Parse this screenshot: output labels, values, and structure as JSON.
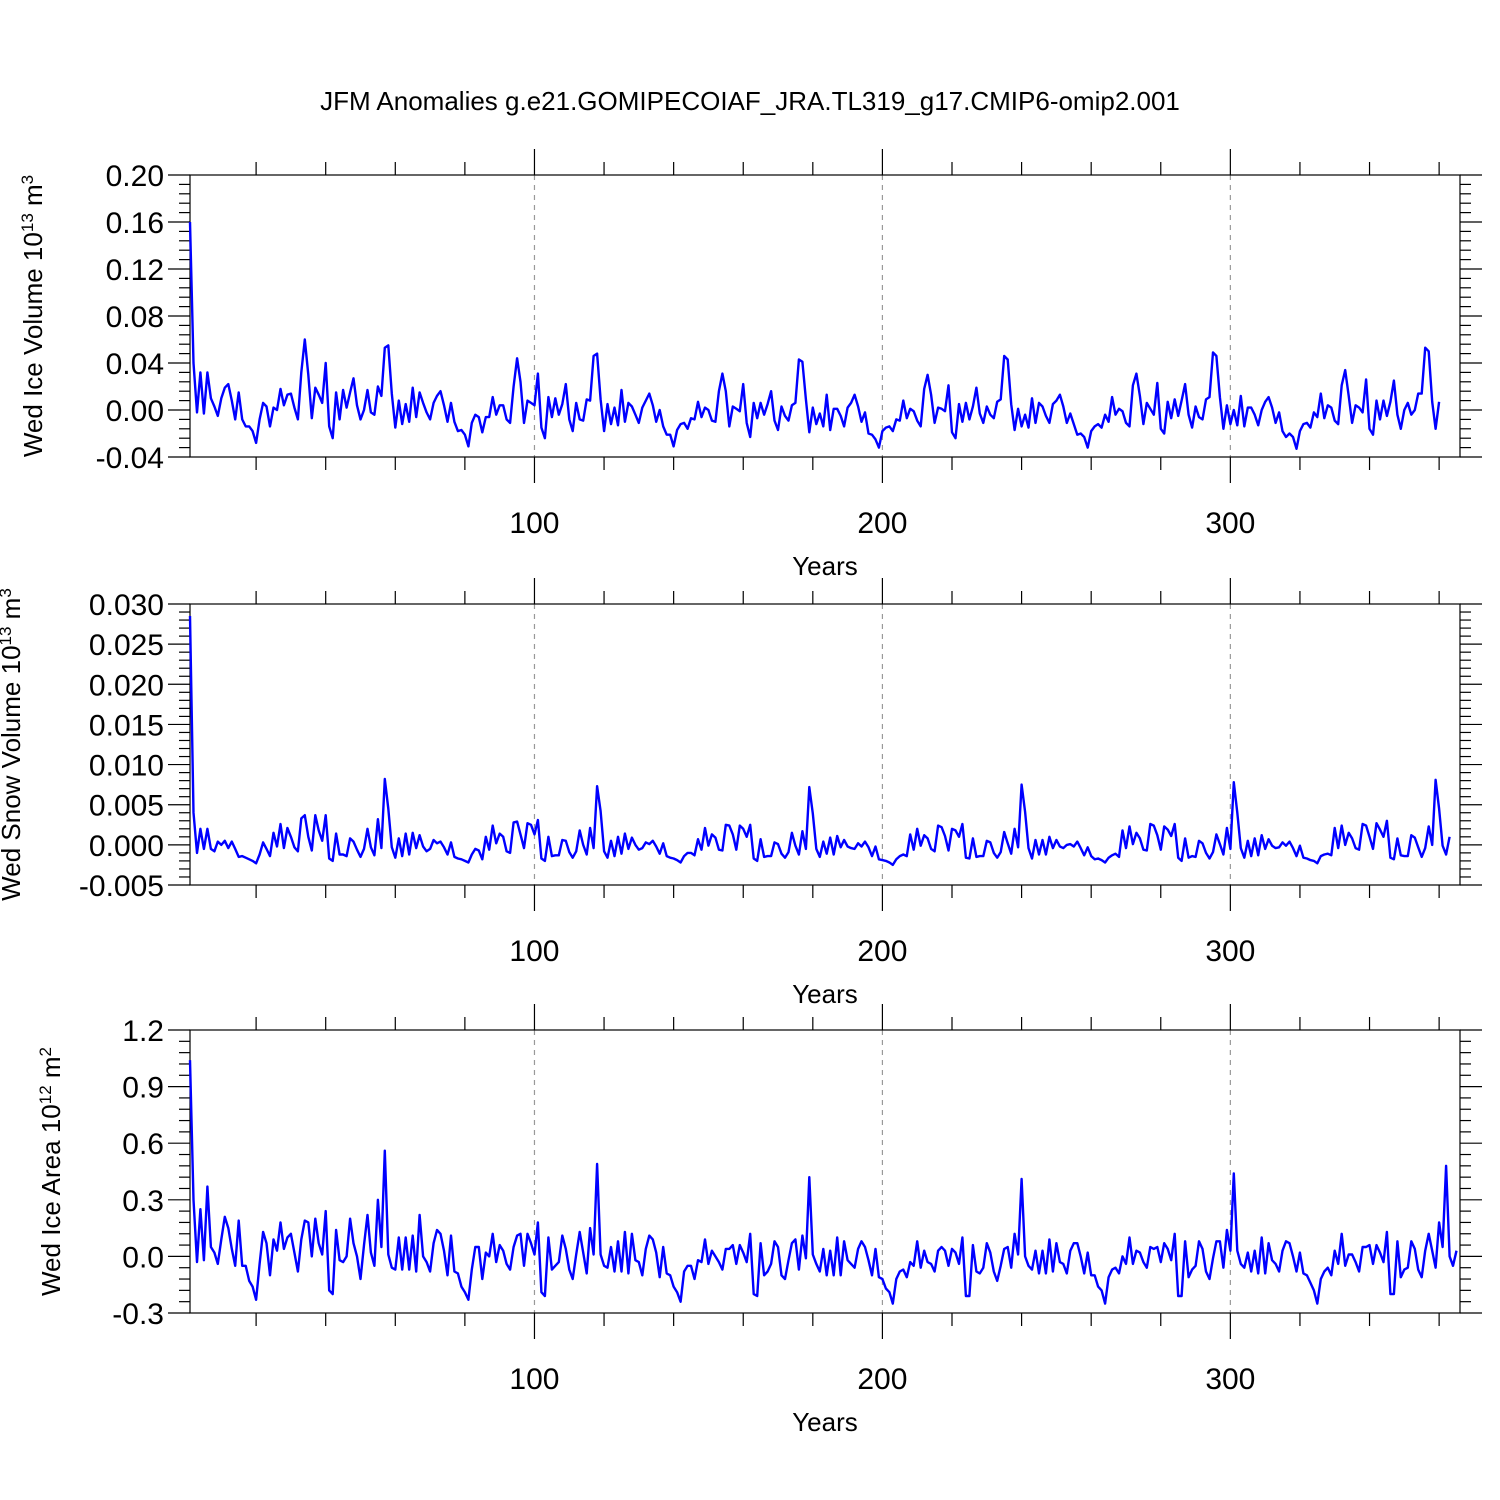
{
  "title": "JFM Anomalies g.e21.GOMIPECOIAF_JRA.TL319_g17.CMIP6-omip2.001",
  "chart_data": [
    {
      "type": "line",
      "ylabel": "Wed Ice Volume",
      "yunit_base": "10",
      "yunit_exp": "13",
      "yunit_tail": "m",
      "yunit_tail_exp": "3",
      "xlabel": "Years",
      "xlim": [
        1,
        366
      ],
      "ylim": [
        -0.04,
        0.2
      ],
      "yticks": [
        "0.20",
        "0.16",
        "0.12",
        "0.08",
        "0.04",
        "0.00",
        "-0.04"
      ],
      "xticks": [
        "100",
        "200",
        "300"
      ],
      "grid": "dashed vertical at 100, 200, 300",
      "color": "#0000ff",
      "x_start": 1,
      "values": [
        0.16,
        0.04,
        -0.002,
        0.032,
        -0.003,
        0.032,
        0.01,
        0.003,
        -0.005,
        0.01,
        0.019,
        0.022,
        0.008,
        -0.008,
        0.015,
        -0.008,
        -0.014,
        -0.014,
        -0.018,
        -0.028,
        -0.008,
        0.006,
        0.003,
        -0.014,
        0.002,
        0.0,
        0.018,
        0.004,
        0.013,
        0.014,
        0.002,
        -0.008,
        0.032,
        0.06,
        0.03,
        -0.007,
        0.019,
        0.013,
        0.006,
        0.04,
        -0.014,
        -0.024,
        0.015,
        -0.008,
        0.017,
        0.002,
        0.015,
        0.027,
        0.004,
        -0.008,
        0.0,
        0.017,
        -0.002,
        -0.004,
        0.02,
        0.012,
        0.053,
        0.055,
        0.014,
        -0.015,
        0.008,
        -0.012,
        0.005,
        -0.01,
        0.019,
        -0.006,
        0.015,
        0.006,
        -0.002,
        -0.008,
        0.006,
        0.012,
        0.016,
        0.004,
        -0.01,
        0.006,
        -0.01,
        -0.018,
        -0.017,
        -0.021,
        -0.031,
        -0.011,
        -0.004,
        -0.006,
        -0.019,
        -0.006,
        -0.006,
        0.011,
        -0.004,
        0.004,
        0.004,
        -0.008,
        -0.011,
        0.02,
        0.044,
        0.024,
        -0.011,
        0.008,
        0.006,
        0.004,
        0.031,
        -0.015,
        -0.024,
        0.011,
        -0.006,
        0.01,
        -0.004,
        0.005,
        0.022,
        -0.008,
        -0.018,
        0.006,
        -0.008,
        -0.009,
        0.009,
        0.008,
        0.046,
        0.048,
        0.009,
        -0.018,
        0.005,
        -0.012,
        0.002,
        -0.013,
        0.017,
        -0.01,
        0.006,
        0.003,
        -0.004,
        -0.011,
        0.002,
        0.008,
        0.014,
        0.004,
        -0.01,
        0.0,
        -0.014,
        -0.021,
        -0.021,
        -0.031,
        -0.017,
        -0.012,
        -0.011,
        -0.016,
        -0.007,
        -0.008,
        0.007,
        -0.006,
        0.002,
        0.0,
        -0.009,
        -0.01,
        0.016,
        0.031,
        0.016,
        -0.014,
        0.003,
        0.001,
        -0.001,
        0.022,
        -0.011,
        -0.023,
        0.006,
        -0.007,
        0.006,
        -0.004,
        0.005,
        0.016,
        -0.009,
        -0.017,
        0.003,
        -0.005,
        -0.009,
        0.004,
        0.006,
        0.043,
        0.041,
        0.009,
        -0.019,
        0.002,
        -0.012,
        -0.003,
        -0.014,
        0.013,
        -0.017,
        0.001,
        0.001,
        -0.005,
        -0.014,
        0.002,
        0.006,
        0.013,
        0.003,
        -0.01,
        -0.002,
        -0.02,
        -0.021,
        -0.025,
        -0.032,
        -0.018,
        -0.015,
        -0.014,
        -0.018,
        -0.008,
        -0.009,
        0.008,
        -0.007,
        0.001,
        -0.001,
        -0.009,
        -0.014,
        0.018,
        0.03,
        0.013,
        -0.011,
        0.002,
        0.001,
        -0.001,
        0.021,
        -0.019,
        -0.024,
        0.005,
        -0.01,
        0.006,
        -0.008,
        0.003,
        0.019,
        -0.003,
        -0.011,
        0.003,
        -0.004,
        -0.007,
        0.007,
        0.009,
        0.046,
        0.043,
        0.005,
        -0.017,
        0.001,
        -0.014,
        -0.004,
        -0.015,
        0.01,
        -0.011,
        0.006,
        0.003,
        -0.005,
        -0.011,
        0.005,
        0.008,
        0.013,
        0.003,
        -0.011,
        -0.003,
        -0.012,
        -0.021,
        -0.02,
        -0.023,
        -0.032,
        -0.018,
        -0.014,
        -0.012,
        -0.015,
        -0.004,
        -0.01,
        0.011,
        -0.004,
        0.001,
        -0.001,
        -0.011,
        -0.014,
        0.021,
        0.031,
        0.012,
        -0.012,
        0.006,
        0.001,
        -0.004,
        0.023,
        -0.016,
        -0.02,
        0.007,
        -0.007,
        0.009,
        -0.005,
        0.008,
        0.022,
        -0.004,
        -0.015,
        0.003,
        -0.006,
        -0.008,
        0.009,
        0.011,
        0.049,
        0.046,
        0.011,
        -0.016,
        0.004,
        -0.012,
        0.0,
        -0.013,
        0.012,
        -0.014,
        0.002,
        0.002,
        -0.004,
        -0.013,
        0.0,
        0.007,
        0.011,
        0.002,
        -0.011,
        -0.002,
        -0.018,
        -0.023,
        -0.02,
        -0.023,
        -0.033,
        -0.018,
        -0.012,
        -0.011,
        -0.015,
        -0.002,
        -0.006,
        0.014,
        -0.007,
        0.004,
        0.002,
        -0.009,
        -0.012,
        0.021,
        0.034,
        0.012,
        -0.011,
        0.004,
        0.002,
        -0.002,
        0.026,
        -0.016,
        -0.021,
        0.008,
        -0.008,
        0.008,
        -0.005,
        0.007,
        0.025,
        -0.004,
        -0.016,
        0.0,
        0.006,
        -0.004,
        0.0,
        0.014,
        0.014,
        0.053,
        0.05,
        0.007,
        -0.016,
        0.007
      ]
    },
    {
      "type": "line",
      "ylabel": "Wed Snow Volume",
      "yunit_base": "10",
      "yunit_exp": "13",
      "yunit_tail": "m",
      "yunit_tail_exp": "3",
      "xlabel": "Years",
      "xlim": [
        1,
        366
      ],
      "ylim": [
        -0.005,
        0.03
      ],
      "yticks": [
        "0.030",
        "0.025",
        "0.020",
        "0.015",
        "0.010",
        "0.005",
        "0.000",
        "-0.005"
      ],
      "xticks": [
        "100",
        "200",
        "300"
      ],
      "grid": "dashed vertical at 100, 200, 300",
      "color": "#0000ff",
      "x_start": 1,
      "values": [
        0.0285,
        0.004,
        -0.001,
        0.002,
        -0.0005,
        0.002,
        -0.0005,
        -0.0008,
        0.0004,
        0.0,
        0.0005,
        -0.0004,
        0.0004,
        -0.0005,
        -0.0015,
        -0.0014,
        -0.0016,
        -0.0018,
        -0.002,
        -0.0023,
        -0.0012,
        0.0003,
        -0.0005,
        -0.0014,
        0.0015,
        -0.0002,
        0.0026,
        -0.0004,
        0.0021,
        0.001,
        -0.0003,
        -0.0008,
        0.0033,
        0.0037,
        0.001,
        -0.0007,
        0.0037,
        0.0018,
        0.0005,
        0.0037,
        -0.0017,
        -0.002,
        0.0014,
        -0.0012,
        -0.0012,
        -0.0014,
        0.0008,
        0.0004,
        -0.0006,
        -0.0015,
        -0.0005,
        0.002,
        -0.0003,
        -0.0013,
        0.0032,
        -0.0004,
        0.0082,
        0.0045,
        -0.0003,
        -0.0016,
        0.0008,
        -0.0014,
        0.0014,
        -0.0012,
        0.0015,
        -0.0004,
        0.0012,
        -0.0002,
        -0.0008,
        -0.0005,
        0.0006,
        0.0002,
        0.0004,
        -0.0003,
        -0.0012,
        0.0003,
        -0.0015,
        -0.0017,
        -0.0018,
        -0.002,
        -0.0022,
        -0.0012,
        -0.0005,
        -0.0007,
        -0.0018,
        0.001,
        -0.0006,
        0.0024,
        0.0002,
        0.0014,
        0.001,
        -0.0008,
        -0.001,
        0.0028,
        0.0029,
        0.0013,
        -0.0004,
        0.0027,
        0.0025,
        0.0013,
        0.0031,
        -0.0017,
        -0.002,
        0.001,
        -0.0014,
        -0.0013,
        -0.0013,
        0.0006,
        0.0005,
        -0.0009,
        -0.0016,
        -0.0008,
        0.0018,
        0.0,
        -0.0012,
        0.0021,
        -0.0004,
        0.0073,
        0.0042,
        -0.0008,
        -0.0016,
        0.0005,
        -0.0014,
        0.001,
        -0.0011,
        0.0014,
        -0.0005,
        0.0009,
        0.0,
        -0.0006,
        -0.0004,
        0.0003,
        0.0001,
        0.0005,
        -0.0002,
        -0.0011,
        0.0002,
        -0.0014,
        -0.0016,
        -0.0017,
        -0.0019,
        -0.0022,
        -0.0014,
        -0.001,
        -0.001,
        -0.0013,
        0.0007,
        -0.0006,
        0.0021,
        -0.0001,
        0.0013,
        0.0009,
        -0.0006,
        -0.0007,
        0.0025,
        0.0024,
        0.0013,
        -0.0006,
        0.0024,
        0.002,
        0.001,
        0.0025,
        -0.0017,
        -0.002,
        0.0007,
        -0.0015,
        -0.0014,
        -0.0014,
        0.0003,
        0.0001,
        -0.0011,
        -0.0016,
        -0.0009,
        0.0015,
        -0.0001,
        -0.0012,
        0.0017,
        -0.0005,
        0.0072,
        0.0039,
        -0.0005,
        -0.0015,
        0.0004,
        -0.0011,
        0.0009,
        -0.0012,
        0.0011,
        -0.0003,
        0.0006,
        -0.0002,
        -0.0004,
        -0.0005,
        0.0002,
        -0.0002,
        0.0004,
        -0.0003,
        -0.0014,
        -0.0002,
        -0.0018,
        -0.0019,
        -0.002,
        -0.0022,
        -0.0025,
        -0.0018,
        -0.0014,
        -0.0012,
        -0.0014,
        0.0013,
        -0.0006,
        0.002,
        -0.0001,
        0.0012,
        0.0008,
        -0.0005,
        -0.0008,
        0.0024,
        0.0022,
        0.0011,
        -0.0007,
        0.002,
        0.0018,
        0.001,
        0.0026,
        -0.0016,
        -0.0017,
        0.0008,
        -0.0015,
        -0.0014,
        -0.0014,
        0.0005,
        0.0003,
        -0.001,
        -0.0016,
        -0.0009,
        0.0016,
        0.0002,
        -0.0011,
        0.002,
        -0.0003,
        0.0075,
        0.0041,
        -0.0004,
        -0.0017,
        0.0006,
        -0.0012,
        0.0006,
        -0.0012,
        0.001,
        -0.0004,
        0.0006,
        -0.0002,
        -0.0004,
        0.0,
        0.0001,
        -0.0002,
        0.0004,
        -0.0004,
        -0.0013,
        -0.0003,
        -0.0014,
        -0.0018,
        -0.0017,
        -0.0019,
        -0.0022,
        -0.0016,
        -0.0013,
        -0.0011,
        -0.0015,
        0.0018,
        -0.0004,
        0.0023,
        0.0001,
        0.0015,
        0.0008,
        -0.0006,
        -0.0007,
        0.0026,
        0.0024,
        0.0012,
        -0.0006,
        0.0023,
        0.0019,
        0.0011,
        0.0026,
        -0.0016,
        -0.002,
        0.0008,
        -0.0016,
        -0.0014,
        -0.0015,
        0.0005,
        0.0002,
        -0.001,
        -0.0017,
        -0.0009,
        0.0013,
        0.0001,
        -0.0012,
        0.0021,
        -0.0005,
        0.0078,
        0.004,
        -0.0004,
        -0.0016,
        0.0005,
        -0.0014,
        0.0008,
        -0.0013,
        0.0012,
        -0.0005,
        0.0007,
        -0.0001,
        -0.0004,
        -0.0003,
        0.0003,
        -0.0001,
        0.0004,
        -0.0004,
        -0.0014,
        -0.0001,
        -0.0016,
        -0.0017,
        -0.0019,
        -0.002,
        -0.0023,
        -0.0014,
        -0.0012,
        -0.0011,
        -0.0013,
        0.0021,
        -0.0004,
        0.0024,
        0.0,
        0.0015,
        0.0008,
        -0.0004,
        -0.0006,
        0.0026,
        0.0024,
        0.001,
        -0.0005,
        0.0027,
        0.0019,
        0.001,
        0.003,
        -0.0016,
        -0.0018,
        0.0008,
        -0.0013,
        -0.0014,
        -0.0014,
        0.0012,
        0.0009,
        -0.0003,
        -0.0015,
        -0.0004,
        0.0023,
        0.0,
        0.0081,
        0.0045,
        -0.0001,
        -0.0012,
        0.001
      ]
    },
    {
      "type": "line",
      "ylabel": "Wed Ice Area",
      "yunit_base": "10",
      "yunit_exp": "12",
      "yunit_tail": "m",
      "yunit_tail_exp": "2",
      "xlabel": "Years",
      "xlim": [
        1,
        366
      ],
      "ylim": [
        -0.3,
        1.2
      ],
      "yticks": [
        "1.2",
        "0.9",
        "0.6",
        "0.3",
        "0.0",
        "-0.3"
      ],
      "xticks": [
        "100",
        "200",
        "300"
      ],
      "grid": "dashed vertical at 100, 200, 300",
      "color": "#0000ff",
      "x_start": 1,
      "values": [
        1.04,
        0.3,
        -0.03,
        0.25,
        -0.02,
        0.37,
        0.05,
        0.02,
        -0.04,
        0.09,
        0.21,
        0.15,
        0.04,
        -0.05,
        0.19,
        -0.05,
        -0.05,
        -0.13,
        -0.16,
        -0.23,
        -0.04,
        0.13,
        0.07,
        -0.1,
        0.09,
        0.03,
        0.18,
        0.04,
        0.1,
        0.12,
        0.02,
        -0.08,
        0.09,
        0.19,
        0.18,
        0.0,
        0.2,
        0.07,
        0.01,
        0.24,
        -0.18,
        -0.2,
        0.14,
        -0.02,
        -0.03,
        0.0,
        0.2,
        0.07,
        0.0,
        -0.12,
        0.06,
        0.22,
        0.02,
        -0.05,
        0.3,
        0.05,
        0.56,
        0.01,
        -0.06,
        -0.07,
        0.1,
        -0.07,
        0.1,
        -0.07,
        0.11,
        -0.08,
        0.22,
        0.0,
        -0.03,
        -0.08,
        0.07,
        0.14,
        0.12,
        0.03,
        -0.1,
        0.11,
        -0.08,
        -0.09,
        -0.16,
        -0.19,
        -0.23,
        -0.07,
        0.05,
        0.05,
        -0.12,
        0.02,
        0.0,
        0.12,
        -0.03,
        0.06,
        0.03,
        -0.04,
        -0.07,
        0.05,
        0.11,
        0.12,
        -0.05,
        0.12,
        0.07,
        0.01,
        0.18,
        -0.19,
        -0.21,
        0.1,
        -0.07,
        -0.05,
        -0.03,
        0.11,
        0.04,
        -0.07,
        -0.12,
        0.01,
        0.13,
        0.02,
        -0.09,
        0.15,
        0.01,
        0.49,
        0.01,
        -0.05,
        -0.06,
        0.05,
        -0.08,
        0.08,
        -0.08,
        0.13,
        -0.09,
        0.12,
        -0.02,
        -0.03,
        -0.1,
        0.04,
        0.11,
        0.09,
        0.02,
        -0.11,
        0.05,
        -0.09,
        -0.1,
        -0.16,
        -0.19,
        -0.24,
        -0.08,
        -0.05,
        -0.05,
        -0.12,
        -0.02,
        -0.03,
        0.09,
        -0.04,
        0.03,
        0.0,
        -0.03,
        -0.07,
        0.04,
        0.04,
        0.06,
        -0.04,
        0.06,
        0.02,
        -0.03,
        0.12,
        -0.2,
        -0.21,
        0.07,
        -0.1,
        -0.08,
        -0.04,
        0.08,
        0.05,
        -0.1,
        -0.12,
        -0.02,
        0.07,
        0.09,
        -0.07,
        0.11,
        -0.01,
        0.42,
        0.01,
        -0.04,
        -0.08,
        0.04,
        -0.1,
        0.03,
        -0.1,
        0.1,
        -0.1,
        0.08,
        -0.02,
        -0.04,
        -0.06,
        0.04,
        0.08,
        0.05,
        -0.02,
        -0.1,
        0.04,
        -0.11,
        -0.12,
        -0.17,
        -0.19,
        -0.25,
        -0.12,
        -0.08,
        -0.07,
        -0.11,
        -0.03,
        -0.05,
        0.08,
        -0.06,
        0.03,
        -0.03,
        -0.04,
        -0.08,
        0.03,
        0.05,
        0.03,
        -0.05,
        0.04,
        0.02,
        -0.04,
        0.1,
        -0.21,
        -0.21,
        0.06,
        -0.08,
        -0.09,
        -0.06,
        0.07,
        0.02,
        -0.08,
        -0.13,
        -0.05,
        0.04,
        0.05,
        -0.06,
        0.12,
        0.01,
        0.41,
        0.0,
        -0.05,
        -0.07,
        0.03,
        -0.09,
        0.03,
        -0.09,
        0.09,
        -0.08,
        0.07,
        -0.03,
        -0.04,
        -0.09,
        0.03,
        0.07,
        0.07,
        0.0,
        -0.09,
        0.02,
        -0.1,
        -0.1,
        -0.16,
        -0.18,
        -0.25,
        -0.11,
        -0.07,
        -0.06,
        -0.09,
        0.0,
        -0.04,
        0.1,
        -0.04,
        0.03,
        0.02,
        -0.03,
        -0.06,
        0.05,
        0.04,
        0.05,
        -0.03,
        0.07,
        0.04,
        -0.02,
        0.12,
        -0.21,
        -0.21,
        0.08,
        -0.11,
        -0.07,
        -0.05,
        0.08,
        0.04,
        -0.08,
        -0.12,
        -0.01,
        0.08,
        0.08,
        -0.06,
        0.14,
        0.03,
        0.44,
        0.03,
        -0.04,
        -0.06,
        0.02,
        -0.08,
        0.03,
        -0.09,
        0.1,
        -0.09,
        0.07,
        -0.02,
        -0.04,
        -0.08,
        0.03,
        0.08,
        0.07,
        0.0,
        -0.08,
        0.02,
        -0.09,
        -0.1,
        -0.14,
        -0.18,
        -0.25,
        -0.12,
        -0.08,
        -0.06,
        -0.1,
        0.03,
        -0.04,
        0.12,
        -0.05,
        0.01,
        0.01,
        -0.03,
        -0.08,
        0.05,
        0.05,
        0.06,
        -0.04,
        0.06,
        0.02,
        -0.03,
        0.13,
        -0.2,
        -0.2,
        0.08,
        -0.11,
        -0.07,
        -0.06,
        0.08,
        0.04,
        -0.07,
        -0.11,
        0.03,
        0.12,
        0.03,
        -0.06,
        0.18,
        0.05,
        0.48,
        0.0,
        -0.05,
        0.03
      ]
    }
  ]
}
